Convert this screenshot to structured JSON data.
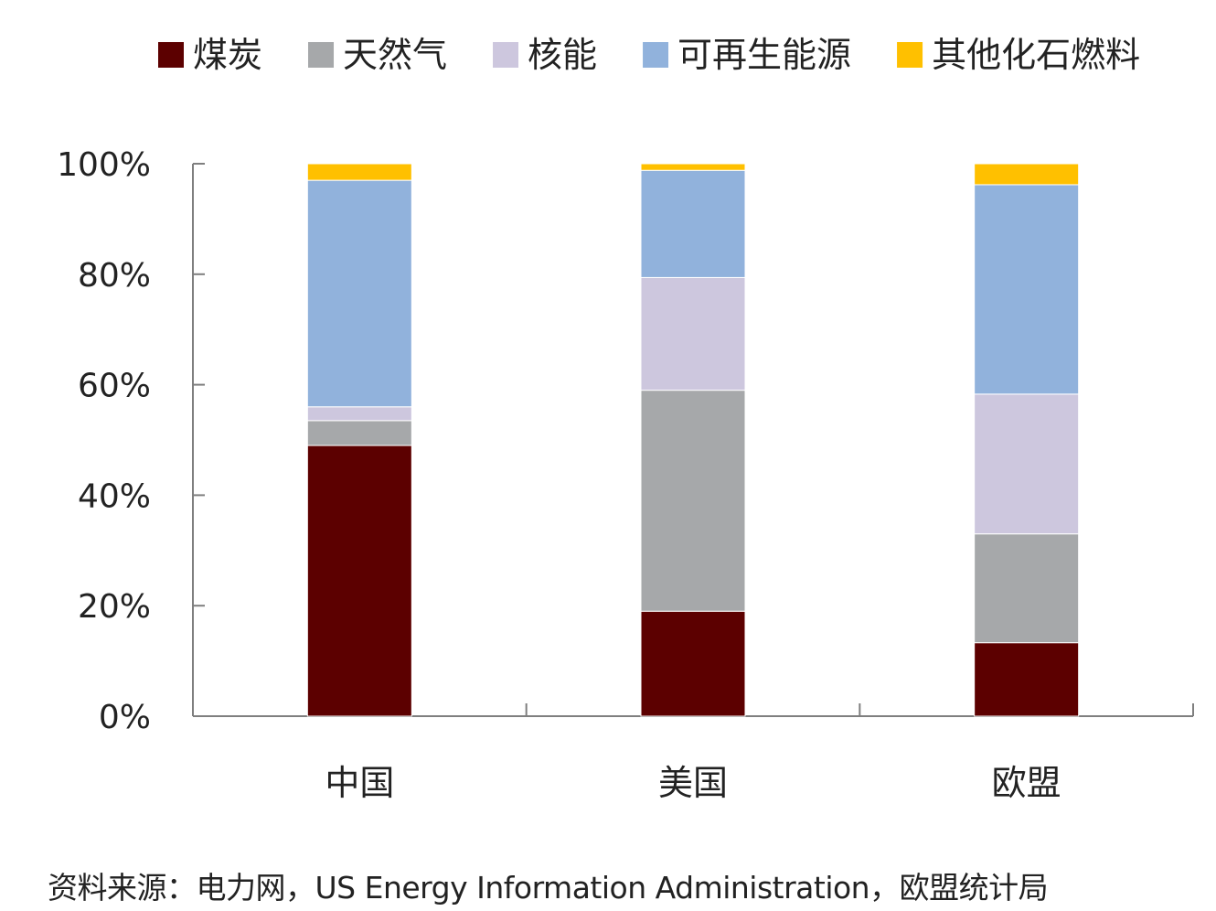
{
  "chart_data": {
    "type": "bar",
    "stacked": true,
    "title": "",
    "xlabel": "",
    "ylabel": "",
    "categories": [
      "中国",
      "美国",
      "欧盟"
    ],
    "series": [
      {
        "name": "煤炭",
        "color": "#5c0000",
        "values": [
          49,
          19,
          13.3
        ]
      },
      {
        "name": "天然气",
        "color": "#a6a8aa",
        "values": [
          4.5,
          40,
          19.7
        ]
      },
      {
        "name": "核能",
        "color": "#cdc7de",
        "values": [
          2.5,
          20.4,
          25.3
        ]
      },
      {
        "name": "可再生能源",
        "color": "#91b2dc",
        "values": [
          41,
          19.4,
          37.9
        ]
      },
      {
        "name": "其他化石燃料",
        "color": "#ffc000",
        "values": [
          3,
          1.2,
          3.8
        ]
      }
    ],
    "ylim": [
      0,
      100
    ],
    "yticks": [
      "0%",
      "20%",
      "40%",
      "60%",
      "80%",
      "100%"
    ],
    "grid": false,
    "legend_position": "top"
  },
  "source_note": "资料来源：电力网，US Energy Information Administration，欧盟统计局"
}
